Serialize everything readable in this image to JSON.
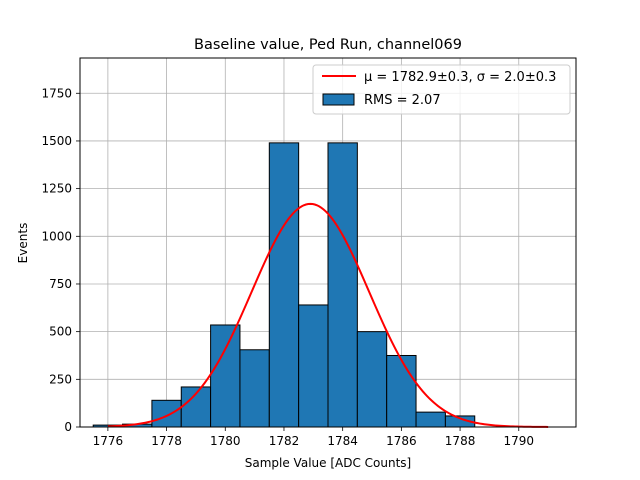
{
  "chart_data": {
    "type": "bar",
    "title": "Baseline value, Ped Run, channel069",
    "xlabel": "Sample Value [ADC Counts]",
    "ylabel": "Events",
    "xlim": [
      1775.05,
      1791.95
    ],
    "ylim": [
      0,
      1935
    ],
    "xticks": [
      1776,
      1778,
      1780,
      1782,
      1784,
      1786,
      1788,
      1790
    ],
    "yticks": [
      0,
      250,
      500,
      750,
      1000,
      1250,
      1500,
      1750
    ],
    "grid": true,
    "legend_position": "top-right",
    "bin_width": 1,
    "bins": [
      {
        "left": 1775.5,
        "count": 10
      },
      {
        "left": 1776.5,
        "count": 15
      },
      {
        "left": 1777.5,
        "count": 140
      },
      {
        "left": 1778.5,
        "count": 210
      },
      {
        "left": 1779.5,
        "count": 535
      },
      {
        "left": 1780.5,
        "count": 405
      },
      {
        "left": 1781.5,
        "count": 1490
      },
      {
        "left": 1782.5,
        "count": 640
      },
      {
        "left": 1783.5,
        "count": 1490
      },
      {
        "left": 1784.5,
        "count": 500
      },
      {
        "left": 1785.5,
        "count": 375
      },
      {
        "left": 1786.5,
        "count": 78
      },
      {
        "left": 1787.5,
        "count": 58
      },
      {
        "left": 1788.5,
        "count": 0
      },
      {
        "left": 1789.5,
        "count": 0
      }
    ],
    "fit": {
      "mu": 1782.9,
      "sigma": 2.0,
      "amplitude": 1170,
      "x_range": [
        1776,
        1791
      ]
    },
    "series": [
      {
        "name": "μ = 1782.9±0.3, σ = 2.0±0.3",
        "type": "line",
        "color": "#ff0000"
      },
      {
        "name": "RMS = 2.07",
        "type": "bar",
        "color": "#1f77b4"
      }
    ]
  }
}
